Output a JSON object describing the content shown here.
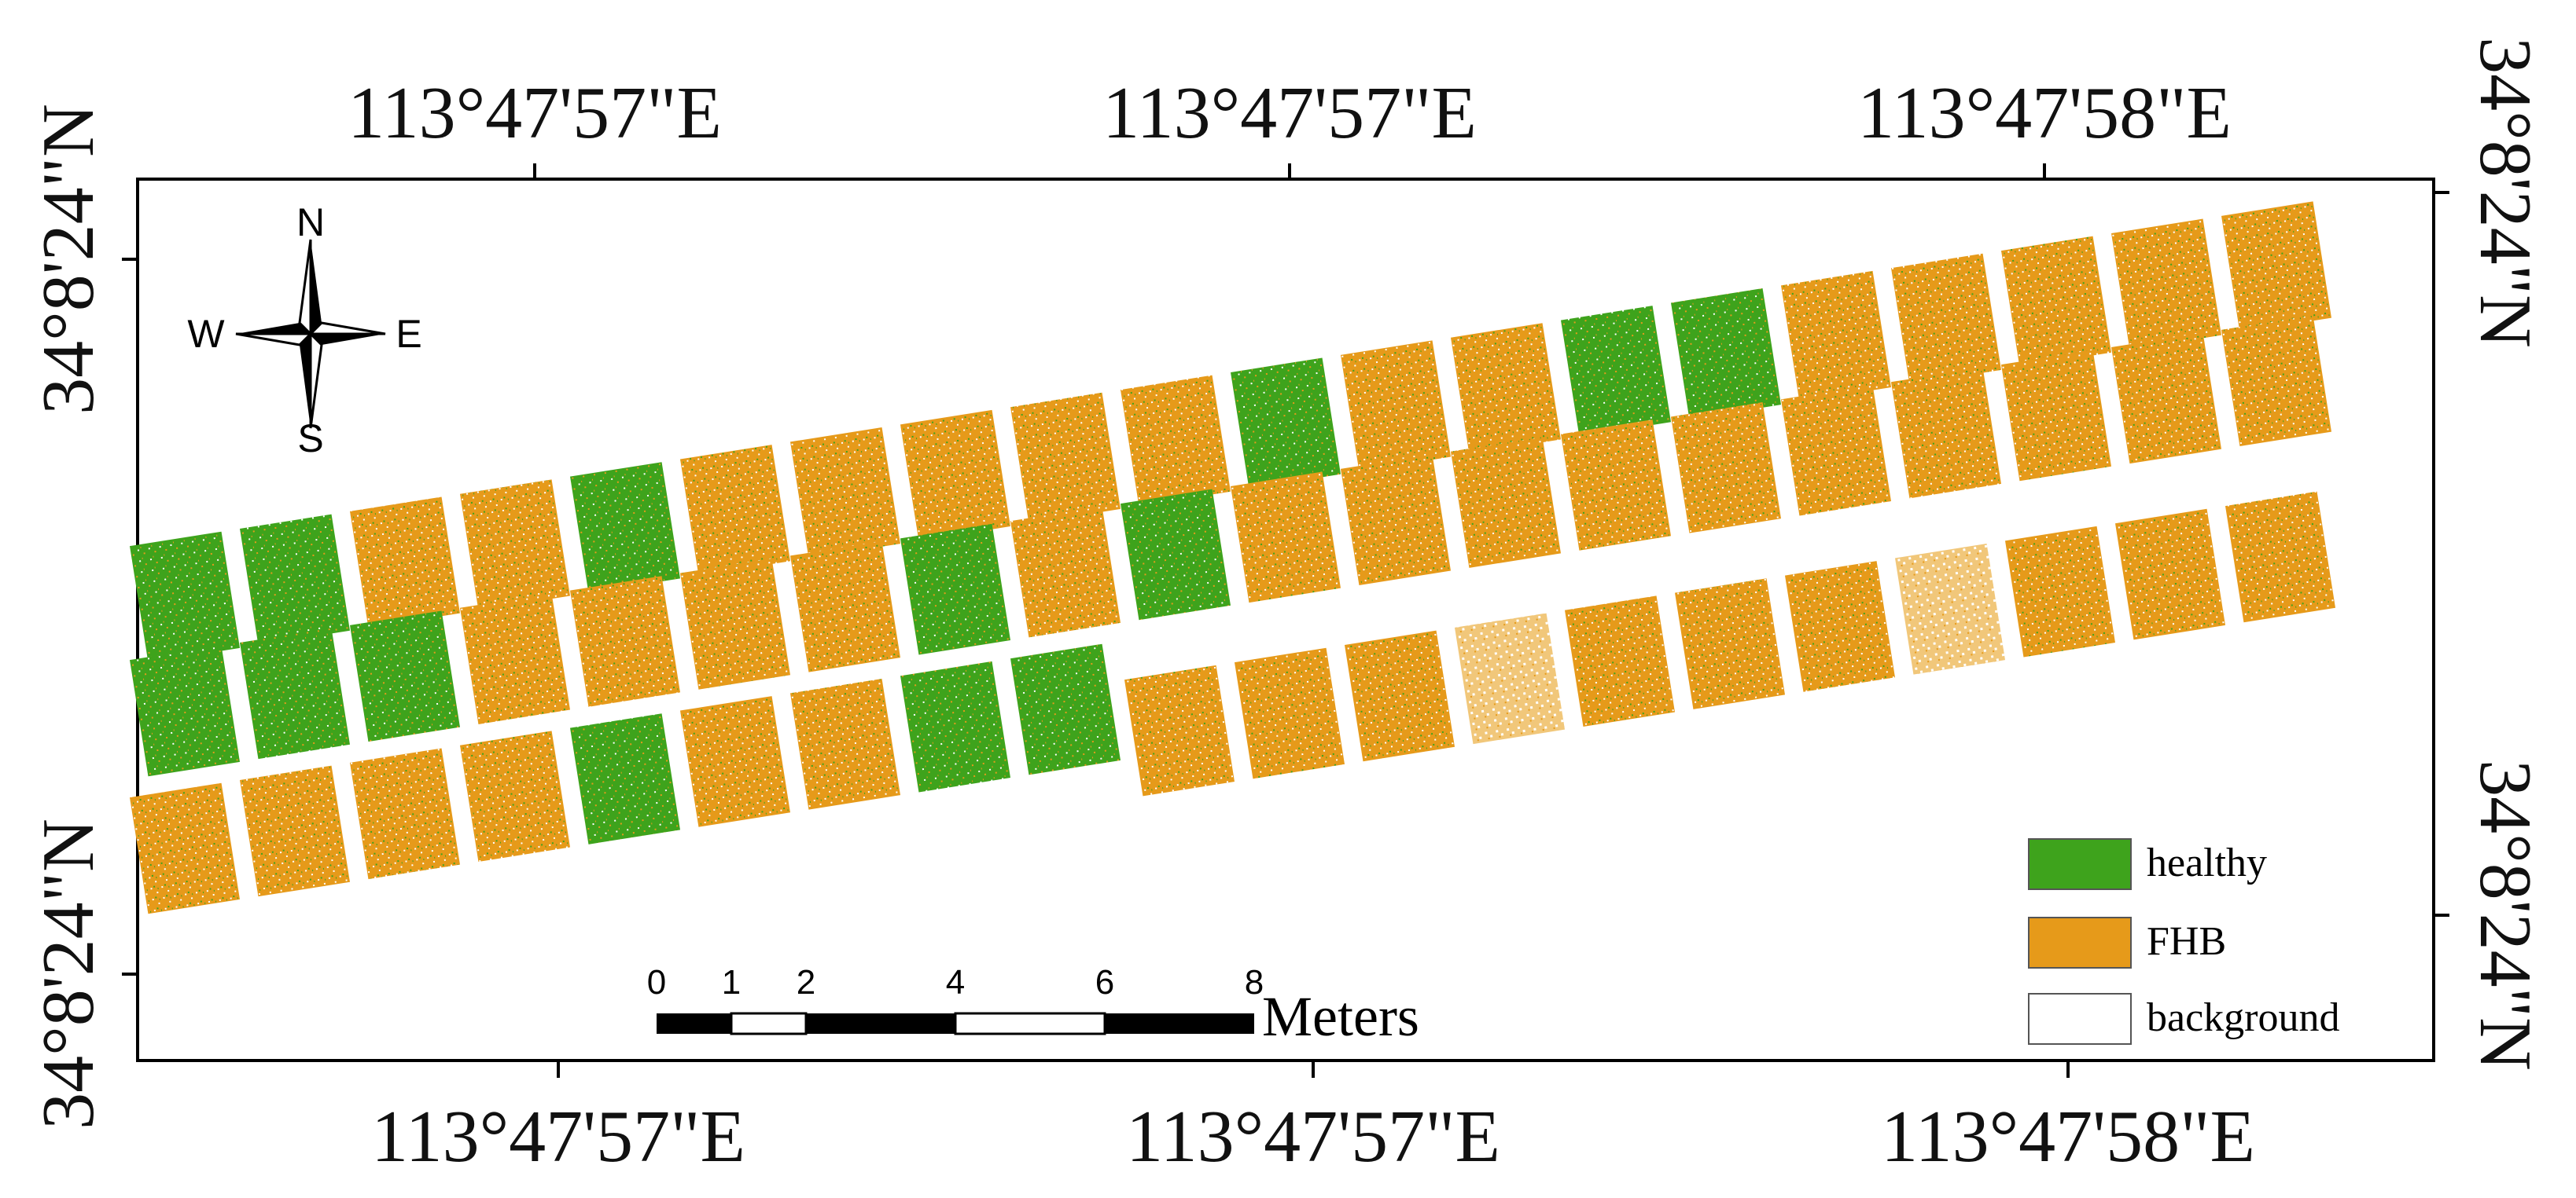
{
  "map": {
    "top_longitudes": [
      "113°47'57\"E",
      "113°47'57\"E",
      "113°47'58\"E"
    ],
    "bottom_longitudes": [
      "113°47'57\"E",
      "113°47'57\"E",
      "113°47'58\"E"
    ],
    "left_latitudes": [
      "34°8'24\"N",
      "34°8'24\"N"
    ],
    "right_latitudes": [
      "34°8'24\"N",
      "34°8'24\"N"
    ]
  },
  "north_arrow": {
    "north": "N",
    "south": "S",
    "east": "E",
    "west": "W"
  },
  "scale_bar": {
    "ticks": [
      "0",
      "1",
      "2",
      "4",
      "6",
      "8"
    ],
    "unit": "Meters"
  },
  "legend": {
    "items": [
      {
        "label": "healthy",
        "color": "#3ea31c"
      },
      {
        "label": "FHB",
        "color": "#e69a1a"
      },
      {
        "label": "background",
        "color": "#ffffff"
      }
    ]
  },
  "colors": {
    "healthy": "#3ea31c",
    "fhb": "#e69a1a",
    "background": "#ffffff",
    "frame": "#000000"
  }
}
